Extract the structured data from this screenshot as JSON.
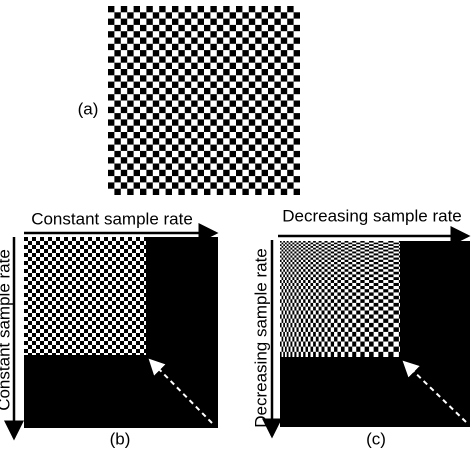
{
  "panel_a": {
    "label": "(a)"
  },
  "panel_b": {
    "top_label": "Constant sample rate",
    "side_label": "Constant sample rate",
    "label": "(b)"
  },
  "panel_c": {
    "top_label": "Decreasing sample rate",
    "side_label": "Decreasing sample rate",
    "label": "(c)"
  }
}
